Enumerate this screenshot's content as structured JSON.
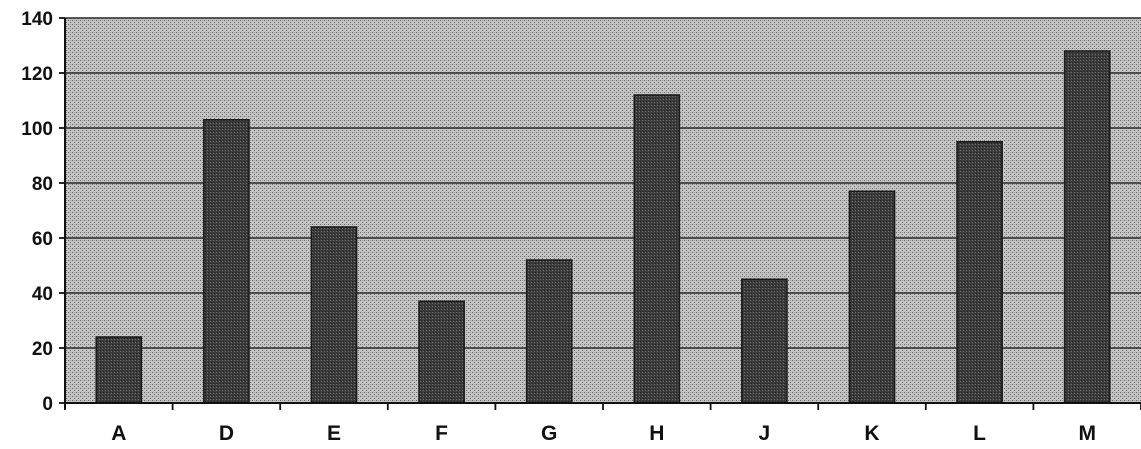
{
  "chart_data": {
    "type": "bar",
    "title": "",
    "xlabel": "",
    "ylabel": "",
    "categories": [
      "A",
      "D",
      "E",
      "F",
      "G",
      "H",
      "J",
      "K",
      "L",
      "M"
    ],
    "values": [
      24,
      103,
      64,
      37,
      52,
      112,
      45,
      77,
      95,
      128
    ],
    "ylim": [
      0,
      140
    ],
    "yticks": [
      0,
      20,
      40,
      60,
      80,
      100,
      120,
      140
    ],
    "grid": true,
    "legend": "none",
    "colors": {
      "plot_background": "#b4b4b4",
      "bar_fill": "#3a3a3a",
      "gridline": "#2a2a2a"
    }
  }
}
